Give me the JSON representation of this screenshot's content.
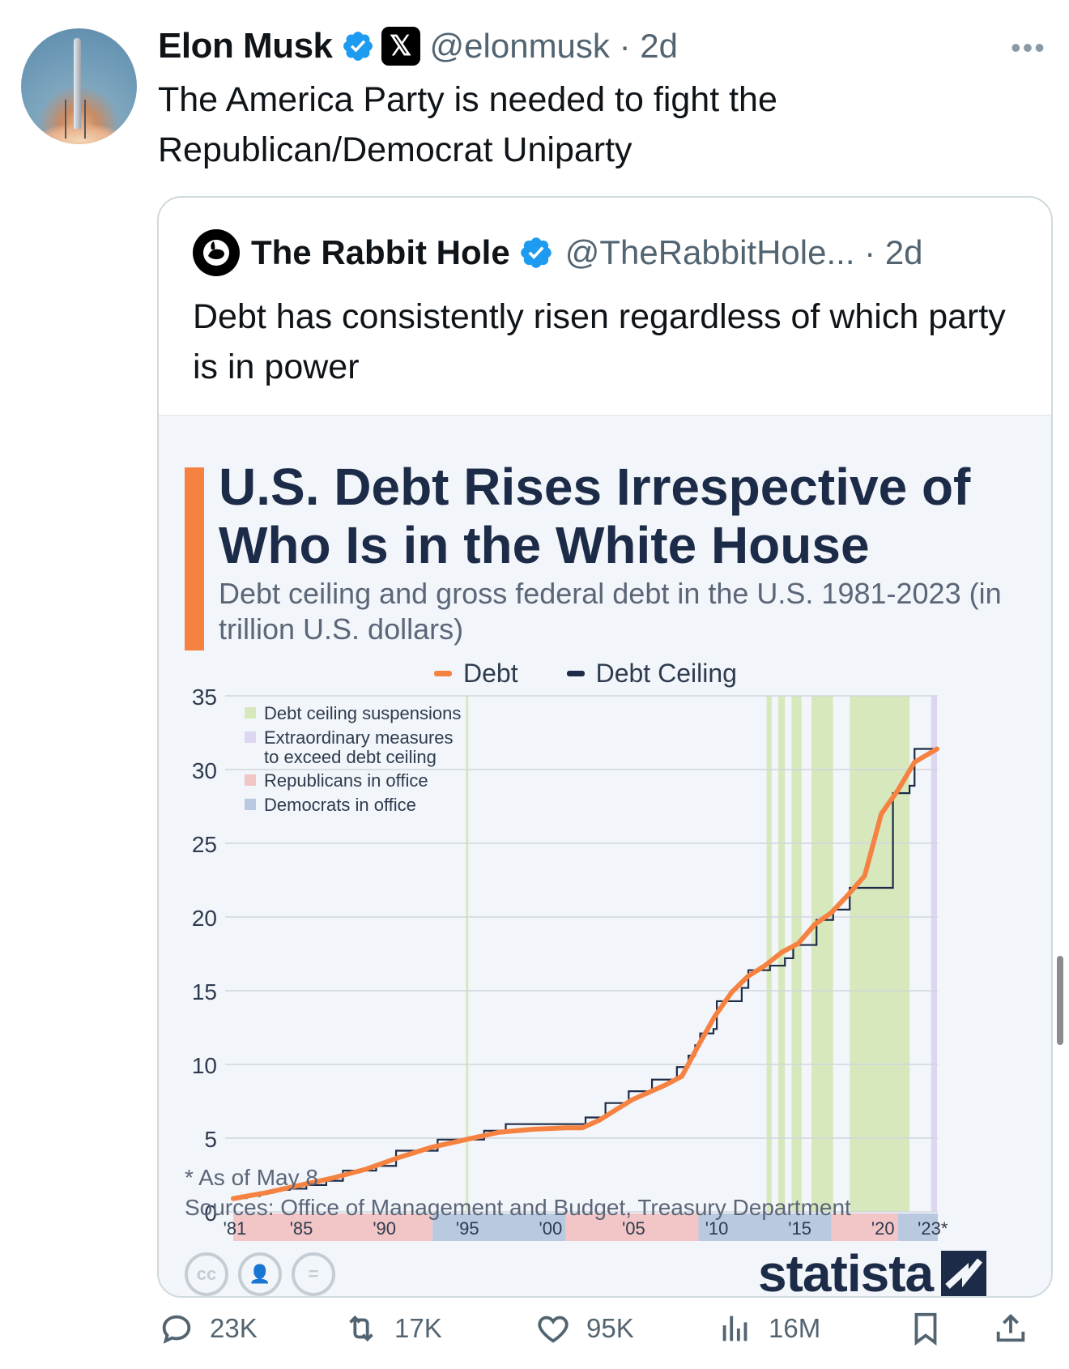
{
  "tweet": {
    "author_name": "Elon Musk",
    "handle": "@elonmusk",
    "time": "· 2d",
    "text": "The America Party is needed to fight the Republican/Democrat Uniparty",
    "more_icon": "ellipsis-icon"
  },
  "quoted": {
    "author_name": "The Rabbit Hole",
    "handle": "@TheRabbitHole...",
    "time": "· 2d",
    "text": "Debt has consistently risen regardless of which party is in power"
  },
  "chart": {
    "title": "U.S. Debt Rises Irrespective of Who Is in the White House",
    "subtitle": "Debt ceiling and gross federal debt in the U.S. 1981-2023 (in trillion U.S. dollars)",
    "note": "* As of May 8",
    "source": "Sources: Office of Management and Budget, Treasury Department",
    "brand": "statista",
    "license_icons": [
      "cc-icon",
      "attribution-icon",
      "no-derivatives-icon"
    ],
    "cc_label": "cc"
  },
  "chart_data": {
    "type": "line",
    "title": "U.S. Debt Rises Irrespective of Who Is in the White House",
    "subtitle": "Debt ceiling and gross federal debt in the U.S. 1981-2023 (in trillion U.S. dollars)",
    "ylim": [
      0,
      35
    ],
    "xlim": [
      1981,
      2023.4
    ],
    "y_ticks": [
      0,
      5,
      10,
      15,
      20,
      25,
      30,
      35
    ],
    "x_ticks": [
      {
        "year": 1981,
        "label": "'81"
      },
      {
        "year": 1985,
        "label": "'85"
      },
      {
        "year": 1990,
        "label": "'90"
      },
      {
        "year": 1995,
        "label": "'95"
      },
      {
        "year": 2000,
        "label": "'00"
      },
      {
        "year": 2005,
        "label": "'05"
      },
      {
        "year": 2010,
        "label": "'10"
      },
      {
        "year": 2015,
        "label": "'15"
      },
      {
        "year": 2020,
        "label": "'20"
      },
      {
        "year": 2023,
        "label": "'23*"
      }
    ],
    "grid": true,
    "legend_position": "top",
    "series": [
      {
        "name": "Debt",
        "color": "#f58241",
        "x": [
          1981,
          1983,
          1985,
          1987,
          1989,
          1991,
          1993,
          1995,
          1997,
          1999,
          2001,
          2002,
          2003,
          2005,
          2007,
          2008,
          2009,
          2010,
          2011,
          2012,
          2013,
          2014,
          2015,
          2016,
          2017,
          2018,
          2019,
          2020,
          2021,
          2022,
          2023.35
        ],
        "values": [
          0.9,
          1.3,
          1.8,
          2.3,
          2.9,
          3.7,
          4.4,
          4.9,
          5.4,
          5.6,
          5.7,
          5.7,
          6.2,
          7.6,
          8.6,
          9.2,
          11.3,
          13.3,
          14.9,
          16.0,
          16.7,
          17.6,
          18.2,
          19.5,
          20.3,
          21.5,
          22.8,
          27.0,
          28.6,
          30.5,
          31.4
        ]
      },
      {
        "name": "Debt Ceiling",
        "color": "#1c2b47",
        "x": [
          1981,
          1981.8,
          1982.6,
          1983.4,
          1984.4,
          1985.4,
          1986.6,
          1987.6,
          1989.6,
          1990.8,
          1993.3,
          1996.1,
          1997.4,
          2002.2,
          2003.4,
          2004.8,
          2006.2,
          2007.7,
          2008.4,
          2008.8,
          2009.1,
          2009.9,
          2010.1,
          2011.6,
          2012.0,
          2013.3,
          2014.2,
          2014.7,
          2016.1,
          2017.1,
          2018.1,
          2019.0,
          2020.7,
          2021.7,
          2022.0,
          2023.4
        ],
        "values": [
          0.93,
          1.08,
          1.29,
          1.49,
          1.57,
          1.82,
          2.11,
          2.8,
          3.12,
          4.15,
          4.9,
          5.5,
          5.95,
          6.4,
          7.38,
          8.18,
          8.97,
          9.82,
          10.6,
          11.3,
          12.1,
          12.4,
          14.29,
          15.19,
          16.39,
          16.7,
          17.2,
          18.1,
          19.8,
          20.5,
          21.98,
          21.98,
          28.4,
          28.9,
          31.4,
          31.4
        ]
      }
    ],
    "shaded_bands": [
      {
        "label": "Debt ceiling suspensions",
        "color": "#d7e8bd",
        "ranges": [
          [
            1995.0,
            1995.1
          ],
          [
            2013.1,
            2013.4
          ],
          [
            2013.8,
            2014.2
          ],
          [
            2014.6,
            2015.2
          ],
          [
            2015.8,
            2017.1
          ],
          [
            2018.1,
            2019.9
          ],
          [
            2019.8,
            2021.7
          ]
        ]
      },
      {
        "label": "Extraordinary measures to exceed debt ceiling",
        "color": "#dcd6f0",
        "ranges": [
          [
            2023.0,
            2023.35
          ]
        ]
      },
      {
        "label": "Republicans in office",
        "color": "#f2c5c6",
        "ranges": [
          [
            1981,
            1993
          ],
          [
            2001,
            2009
          ],
          [
            2017,
            2021
          ]
        ]
      },
      {
        "label": "Democrats in office",
        "color": "#b8c9e0",
        "ranges": [
          [
            1993,
            2001
          ],
          [
            2009,
            2017
          ],
          [
            2021,
            2023.4
          ]
        ]
      }
    ]
  },
  "actions": {
    "reply": "23K",
    "retweet": "17K",
    "like": "95K",
    "views": "16M"
  }
}
